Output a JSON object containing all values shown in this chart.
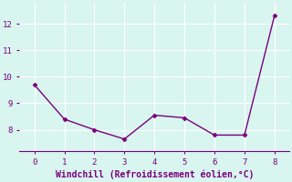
{
  "x": [
    0,
    1,
    2,
    3,
    4,
    5,
    6,
    7,
    8
  ],
  "y": [
    9.7,
    8.4,
    8.0,
    7.65,
    8.55,
    8.45,
    7.8,
    7.8,
    12.3
  ],
  "line_color": "#7B007B",
  "marker": "D",
  "marker_size": 2.5,
  "line_width": 1.0,
  "xlabel": "Windchill (Refroidissement éolien,°C)",
  "xlabel_fontsize": 7,
  "xlim": [
    -0.5,
    8.5
  ],
  "ylim": [
    7.2,
    12.8
  ],
  "yticks": [
    8,
    9,
    10,
    11,
    12
  ],
  "xticks": [
    0,
    1,
    2,
    3,
    4,
    5,
    6,
    7,
    8
  ],
  "background_color": "#d8f5f0",
  "grid_color": "#ffffff",
  "tick_fontsize": 6.5,
  "line_style": "solid"
}
